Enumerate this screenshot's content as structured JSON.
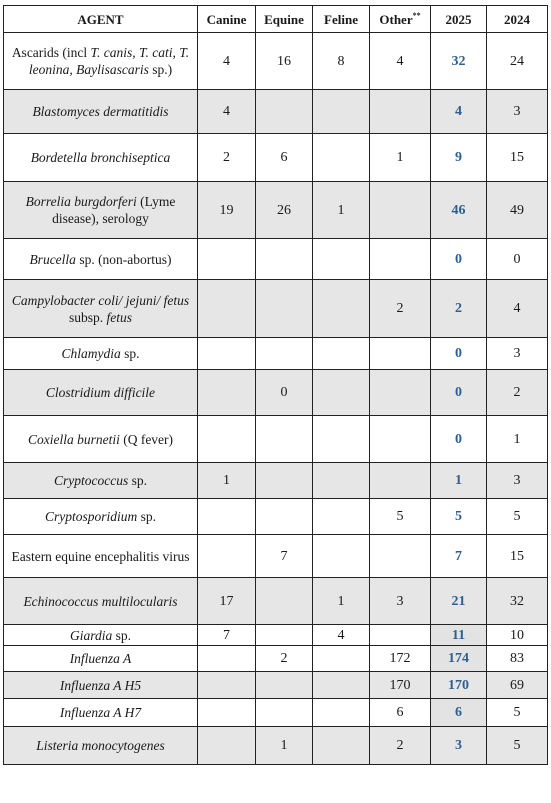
{
  "table": {
    "headers": {
      "agent": "AGENT",
      "canine": "Canine",
      "equine": "Equine",
      "feline": "Feline",
      "other": "Other",
      "other_sup": "**",
      "y2025": "2025",
      "y2024": "2024"
    },
    "rows": [
      {
        "agent": [
          {
            "t": "Ascarids (incl "
          },
          {
            "t": "T. canis, T. cati, T. leonina, Baylisascaris",
            "i": true
          },
          {
            "t": " sp.)"
          }
        ],
        "canine": "4",
        "equine": "16",
        "feline": "8",
        "other": "4",
        "y2025": "32",
        "y2024": "24"
      },
      {
        "agent": [
          {
            "t": "Blastomyces dermatitidis",
            "i": true
          }
        ],
        "canine": "4",
        "equine": "",
        "feline": "",
        "other": "",
        "y2025": "4",
        "y2024": "3"
      },
      {
        "agent": [
          {
            "t": "Bordetella bronchiseptica",
            "i": true
          }
        ],
        "canine": "2",
        "equine": "6",
        "feline": "",
        "other": "1",
        "y2025": "9",
        "y2024": "15"
      },
      {
        "agent": [
          {
            "t": "Borrelia burgdorferi",
            "i": true
          },
          {
            "t": " (Lyme disease), serology"
          }
        ],
        "canine": "19",
        "equine": "26",
        "feline": "1",
        "other": "",
        "y2025": "46",
        "y2024": "49"
      },
      {
        "agent": [
          {
            "t": "Brucella",
            "i": true
          },
          {
            "t": " sp. (non-abortus)"
          }
        ],
        "canine": "",
        "equine": "",
        "feline": "",
        "other": "",
        "y2025": "0",
        "y2024": "0"
      },
      {
        "agent": [
          {
            "t": "Campylobacter coli/ jejuni/ fetus",
            "i": true
          },
          {
            "t": " subsp. "
          },
          {
            "t": "fetus",
            "i": true
          }
        ],
        "canine": "",
        "equine": "",
        "feline": "",
        "other": "2",
        "y2025": "2",
        "y2024": "4"
      },
      {
        "agent": [
          {
            "t": "Chlamydia",
            "i": true
          },
          {
            "t": " sp."
          }
        ],
        "canine": "",
        "equine": "",
        "feline": "",
        "other": "",
        "y2025": "0",
        "y2024": "3"
      },
      {
        "agent": [
          {
            "t": "Clostridium difficile",
            "i": true
          }
        ],
        "canine": "",
        "equine": "0",
        "feline": "",
        "other": "",
        "y2025": "0",
        "y2024": "2"
      },
      {
        "agent": [
          {
            "t": "Coxiella burnetii",
            "i": true
          },
          {
            "t": " (Q fever)"
          }
        ],
        "canine": "",
        "equine": "",
        "feline": "",
        "other": "",
        "y2025": "0",
        "y2024": "1"
      },
      {
        "agent": [
          {
            "t": "Cryptococcus",
            "i": true
          },
          {
            "t": " sp."
          }
        ],
        "canine": "1",
        "equine": "",
        "feline": "",
        "other": "",
        "y2025": "1",
        "y2024": "3"
      },
      {
        "agent": [
          {
            "t": "Cryptosporidium",
            "i": true
          },
          {
            "t": " sp."
          }
        ],
        "canine": "",
        "equine": "",
        "feline": "",
        "other": "5",
        "y2025": "5",
        "y2024": "5"
      },
      {
        "agent": [
          {
            "t": "Eastern equine encephalitis virus"
          }
        ],
        "canine": "",
        "equine": "7",
        "feline": "",
        "other": "",
        "y2025": "7",
        "y2024": "15"
      },
      {
        "agent": [
          {
            "t": "Echinococcus multilocularis",
            "i": true
          }
        ],
        "canine": "17",
        "equine": "",
        "feline": "1",
        "other": "3",
        "y2025": "21",
        "y2024": "32"
      },
      {
        "agent": [
          {
            "t": "Giardia",
            "i": true
          },
          {
            "t": " sp."
          }
        ],
        "canine": "7",
        "equine": "",
        "feline": "4",
        "other": "",
        "y2025": "11",
        "y2024": "10"
      },
      {
        "agent": [
          {
            "t": "Influenza A",
            "i": true
          }
        ],
        "canine": "",
        "equine": "2",
        "feline": "",
        "other": "172",
        "y2025": "174",
        "y2024": "83"
      },
      {
        "agent": [
          {
            "t": "Influenza A H5",
            "i": true
          }
        ],
        "canine": "",
        "equine": "",
        "feline": "",
        "other": "170",
        "y2025": "170",
        "y2024": "69"
      },
      {
        "agent": [
          {
            "t": "Influenza A H7",
            "i": true
          }
        ],
        "canine": "",
        "equine": "",
        "feline": "",
        "other": "6",
        "y2025": "6",
        "y2024": "5"
      },
      {
        "agent": [
          {
            "t": "Listeria monocytogenes",
            "i": true
          }
        ],
        "canine": "",
        "equine": "1",
        "feline": "",
        "other": "2",
        "y2025": "3",
        "y2024": "5"
      }
    ]
  },
  "colors": {
    "shade": "#e6e6e6",
    "accent_2025": "#2f5f8f",
    "border": "#222222"
  }
}
